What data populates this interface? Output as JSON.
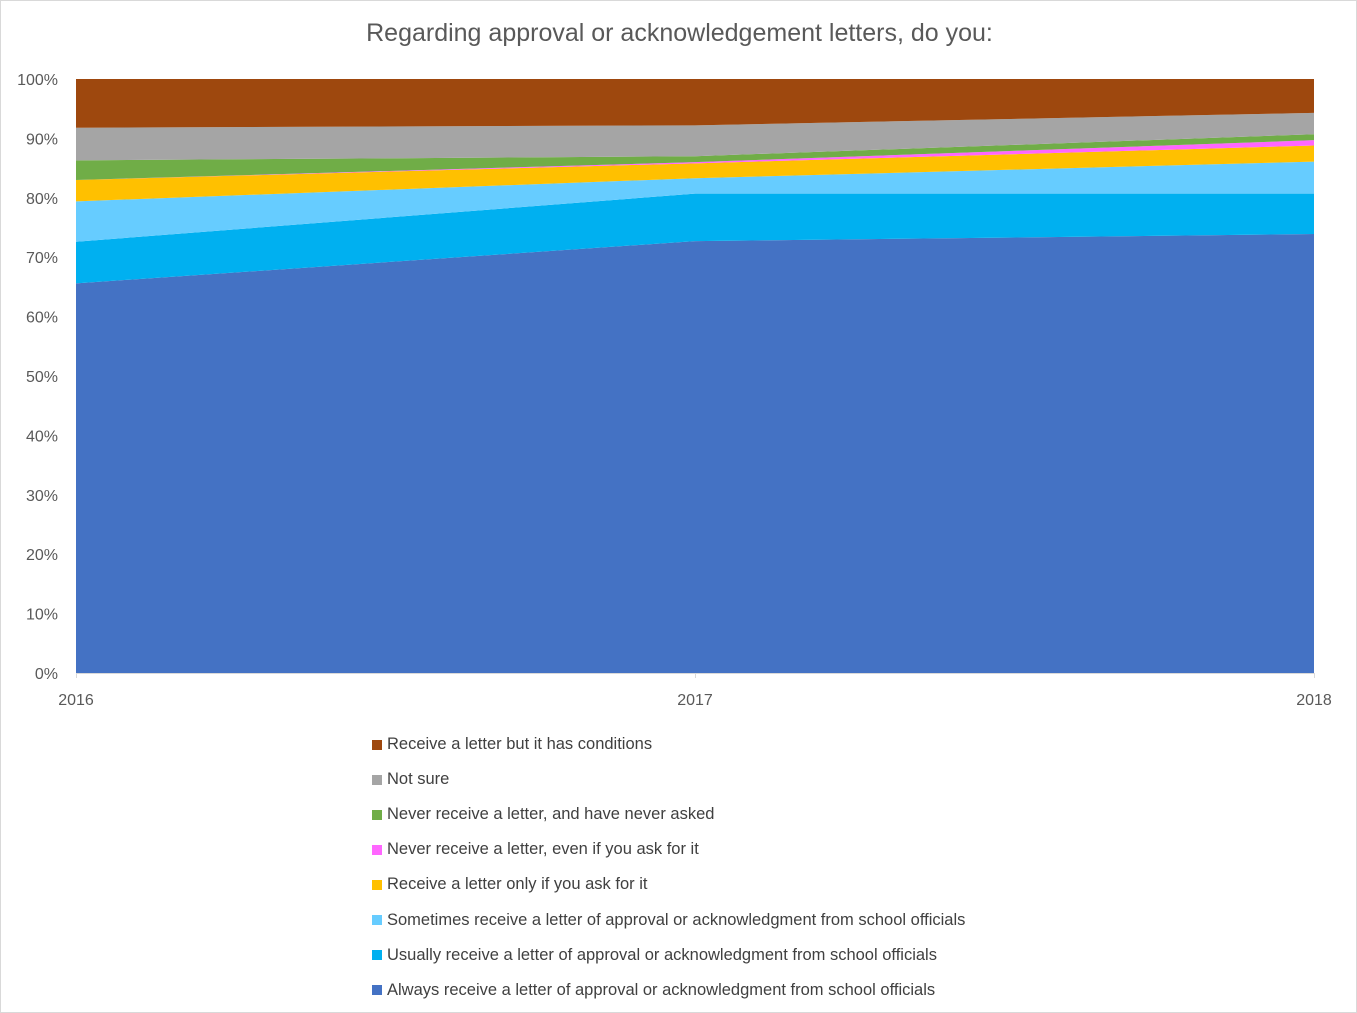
{
  "chart_data": {
    "type": "area",
    "stacked": "percent",
    "title": "Regarding approval or acknowledgement letters, do you:",
    "x": [
      "2016",
      "2017",
      "2018"
    ],
    "y_ticks": [
      "0%",
      "10%",
      "20%",
      "30%",
      "40%",
      "50%",
      "60%",
      "70%",
      "80%",
      "90%",
      "100%"
    ],
    "ylim": [
      0,
      100
    ],
    "grid": false,
    "legend_position": "bottom",
    "series": [
      {
        "name": "Always receive a letter of approval or acknowledgment from school officials",
        "color": "#4472C4",
        "values": [
          65.6,
          72.7,
          73.9
        ]
      },
      {
        "name": "Usually receive a letter of approval or acknowledgment from school officials",
        "color": "#00B0F0",
        "values": [
          7.0,
          8.0,
          6.8
        ]
      },
      {
        "name": "Sometimes receive a letter of approval or acknowledgment from school officials",
        "color": "#66CCFF",
        "values": [
          6.8,
          2.6,
          5.4
        ]
      },
      {
        "name": "Receive a letter only if you ask for it",
        "color": "#FFC000",
        "values": [
          3.6,
          2.5,
          2.7
        ]
      },
      {
        "name": "Never receive a letter, even if you ask for it",
        "color": "#FF66FF",
        "values": [
          0.0,
          0.2,
          0.9
        ]
      },
      {
        "name": "Never receive a letter, and have never asked",
        "color": "#70AD47",
        "values": [
          3.3,
          1.0,
          1.0
        ]
      },
      {
        "name": "Not sure",
        "color": "#A5A5A5",
        "values": [
          5.5,
          5.2,
          3.6
        ]
      },
      {
        "name": "Receive a letter but it has conditions",
        "color": "#9E480E",
        "values": [
          8.2,
          7.8,
          5.7
        ]
      }
    ]
  }
}
